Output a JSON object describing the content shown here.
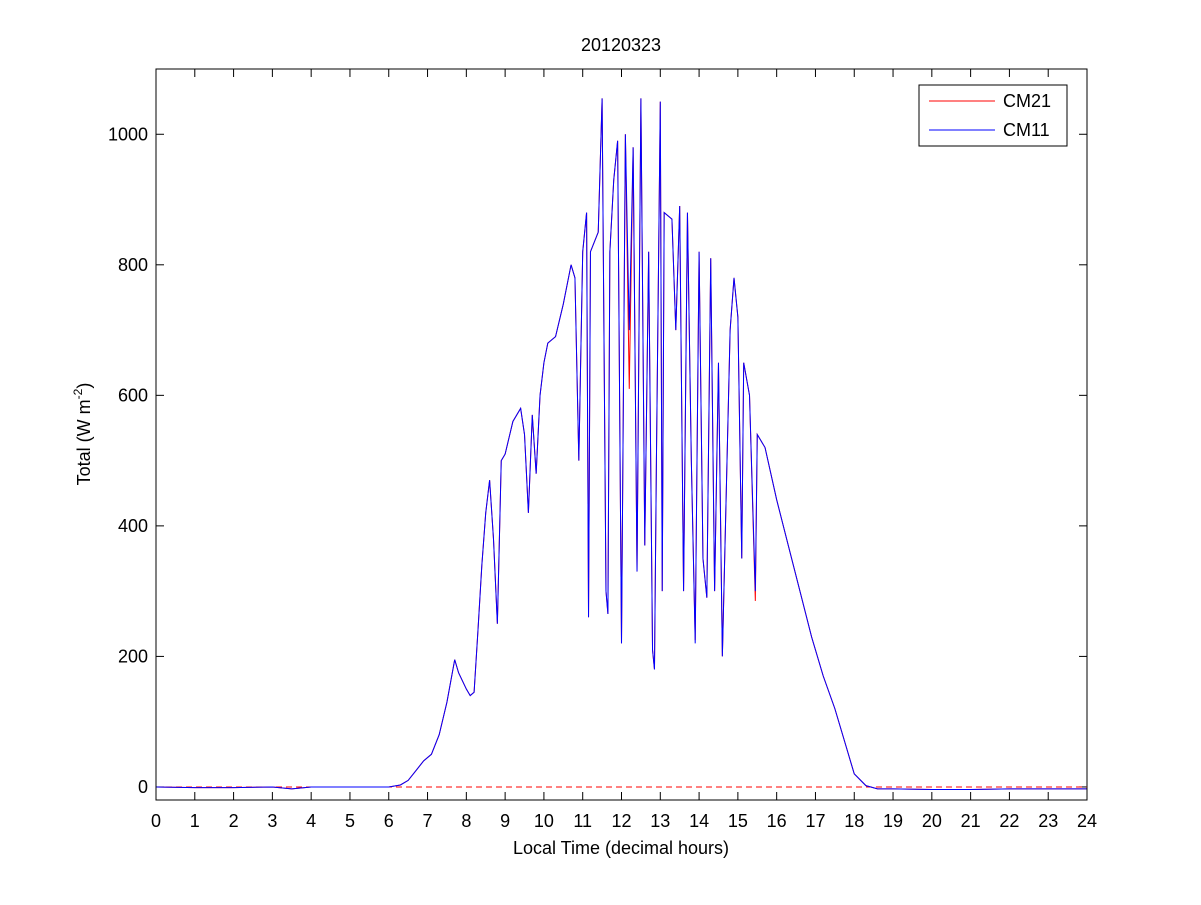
{
  "chart_data": {
    "type": "line",
    "title": "20120323",
    "xlabel": "Local Time (decimal hours)",
    "ylabel": "Total (W m",
    "ylabel_superscript": "-2",
    "ylabel_end": ")",
    "x": [
      0,
      1,
      2,
      3,
      3.5,
      4,
      5,
      6,
      6.3,
      6.5,
      6.7,
      6.9,
      7.1,
      7.3,
      7.5,
      7.7,
      7.8,
      8,
      8.1,
      8.2,
      8.3,
      8.4,
      8.5,
      8.6,
      8.7,
      8.8,
      8.9,
      9,
      9.2,
      9.4,
      9.5,
      9.6,
      9.7,
      9.8,
      9.9,
      10,
      10.1,
      10.3,
      10.5,
      10.7,
      10.8,
      10.9,
      11,
      11.1,
      11.15,
      11.2,
      11.4,
      11.5,
      11.6,
      11.65,
      11.7,
      11.8,
      11.9,
      12,
      12.1,
      12.2,
      12.3,
      12.4,
      12.5,
      12.6,
      12.7,
      12.8,
      12.85,
      12.9,
      13,
      13.05,
      13.1,
      13.3,
      13.4,
      13.5,
      13.6,
      13.7,
      13.8,
      13.9,
      14,
      14.1,
      14.2,
      14.3,
      14.4,
      14.5,
      14.6,
      14.7,
      14.8,
      14.9,
      15,
      15.1,
      15.15,
      15.3,
      15.45,
      15.5,
      15.7,
      16,
      16.3,
      16.6,
      16.9,
      17.2,
      17.5,
      17.8,
      18,
      18.3,
      18.6,
      19,
      20,
      21,
      22,
      23,
      24
    ],
    "series": [
      {
        "name": "CM21",
        "color": "#ff0000",
        "values": [
          0,
          -1,
          -1,
          0,
          -3,
          0,
          0,
          0,
          3,
          10,
          25,
          40,
          50,
          80,
          130,
          195,
          175,
          150,
          140,
          145,
          240,
          340,
          420,
          470,
          380,
          250,
          500,
          510,
          560,
          580,
          540,
          420,
          570,
          480,
          600,
          650,
          680,
          690,
          740,
          800,
          780,
          500,
          820,
          880,
          260,
          820,
          850,
          1055,
          300,
          265,
          820,
          930,
          990,
          220,
          1000,
          610,
          980,
          330,
          1055,
          370,
          820,
          210,
          180,
          500,
          1050,
          300,
          880,
          870,
          700,
          890,
          300,
          880,
          500,
          225,
          820,
          350,
          290,
          810,
          300,
          650,
          200,
          450,
          700,
          780,
          720,
          350,
          650,
          600,
          285,
          540,
          520,
          440,
          370,
          300,
          230,
          170,
          120,
          60,
          20,
          2,
          -3,
          -3,
          -4,
          -4,
          -3,
          -3,
          -3
        ]
      },
      {
        "name": "CM11",
        "color": "#0000ff",
        "values": [
          0,
          -1,
          -1,
          0,
          -3,
          0,
          0,
          0,
          3,
          10,
          25,
          40,
          50,
          80,
          130,
          195,
          175,
          150,
          140,
          145,
          240,
          340,
          420,
          470,
          380,
          250,
          500,
          510,
          560,
          580,
          540,
          420,
          570,
          480,
          600,
          650,
          680,
          690,
          740,
          800,
          780,
          500,
          820,
          880,
          260,
          820,
          850,
          1055,
          300,
          265,
          820,
          930,
          990,
          220,
          1000,
          700,
          980,
          330,
          1055,
          370,
          820,
          210,
          180,
          500,
          1050,
          300,
          880,
          870,
          700,
          890,
          300,
          880,
          500,
          220,
          820,
          350,
          290,
          810,
          300,
          650,
          200,
          450,
          700,
          780,
          720,
          350,
          650,
          600,
          300,
          540,
          520,
          440,
          370,
          300,
          230,
          170,
          120,
          60,
          20,
          2,
          -3,
          -3,
          -4,
          -4,
          -3,
          -3,
          -3
        ]
      }
    ],
    "reference_line": 0,
    "reference_color": "#ff0000",
    "xlim": [
      0,
      24
    ],
    "xticks": [
      0,
      1,
      2,
      3,
      4,
      5,
      6,
      7,
      8,
      9,
      10,
      11,
      12,
      13,
      14,
      15,
      16,
      17,
      18,
      19,
      20,
      21,
      22,
      23,
      24
    ],
    "ylim": [
      -20,
      1100
    ],
    "yticks": [
      0,
      200,
      400,
      600,
      800,
      1000
    ],
    "grid": false,
    "legend": "northeast"
  }
}
